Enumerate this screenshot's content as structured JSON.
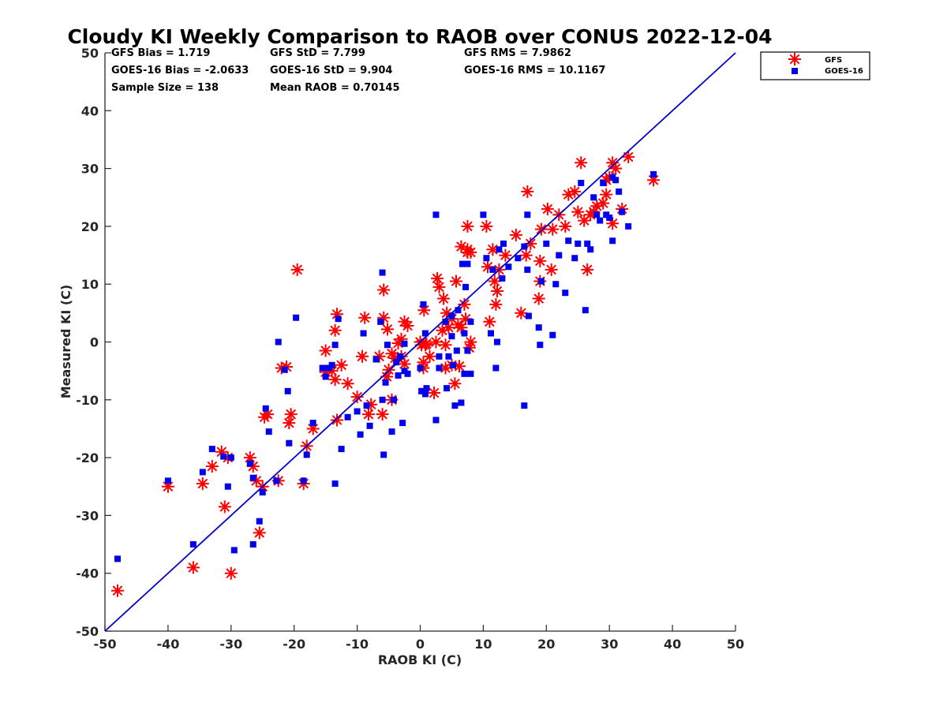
{
  "chart_data": {
    "type": "scatter",
    "title": "Cloudy KI Weekly Comparison to RAOB over CONUS 2022-12-04",
    "xlabel": "RAOB KI (C)",
    "ylabel": "Measured KI (C)",
    "xlim": [
      -50,
      50
    ],
    "ylim": [
      -50,
      50
    ],
    "xticks": [
      -50,
      -40,
      -30,
      -20,
      -10,
      0,
      10,
      20,
      30,
      40,
      50
    ],
    "yticks": [
      -50,
      -40,
      -30,
      -20,
      -10,
      0,
      10,
      20,
      30,
      40,
      50
    ],
    "grid": false,
    "legend_position": "outside-top-right",
    "reference_line": {
      "label": "1:1",
      "from": [
        -50,
        -50
      ],
      "to": [
        50,
        50
      ],
      "color": "#0000cc"
    },
    "stats": [
      [
        "GFS Bias = 1.719",
        "GFS StD = 7.799",
        "GFS RMS = 7.9862"
      ],
      [
        "GOES-16 Bias = -2.0633",
        "GOES-16 StD = 9.904",
        "GOES-16 RMS = 10.1167"
      ],
      [
        "Sample Size = 138",
        "Mean RAOB = 0.70145",
        ""
      ]
    ],
    "series": [
      {
        "name": "GFS",
        "marker": "asterisk",
        "color": "#ff0000",
        "points": [
          [
            -48,
            -43
          ],
          [
            -40,
            -25
          ],
          [
            -36,
            -39
          ],
          [
            -34.5,
            -24.5
          ],
          [
            -33,
            -21.5
          ],
          [
            -31.5,
            -19
          ],
          [
            -31,
            -28.5
          ],
          [
            -30.5,
            -20
          ],
          [
            -30,
            -40
          ],
          [
            -27,
            -20
          ],
          [
            -26.5,
            -21.5
          ],
          [
            -26,
            -24
          ],
          [
            -25.5,
            -33
          ],
          [
            -25,
            -25
          ],
          [
            -24.7,
            -13
          ],
          [
            -24.2,
            -12.5
          ],
          [
            -22.5,
            -24
          ],
          [
            -22,
            -4.5
          ],
          [
            -21.2,
            -4.3
          ],
          [
            -20.8,
            -14
          ],
          [
            -20.5,
            -12.5
          ],
          [
            -19.5,
            12.5
          ],
          [
            -18.5,
            -24.5
          ],
          [
            -18,
            -18
          ],
          [
            -17,
            -15
          ],
          [
            -15,
            -1.5
          ],
          [
            -15,
            -5.2
          ],
          [
            -14,
            -5
          ],
          [
            -13.5,
            -6.5
          ],
          [
            -13.5,
            2
          ],
          [
            -13.2,
            -13.5
          ],
          [
            -13.2,
            4.8
          ],
          [
            -12.5,
            -4
          ],
          [
            -11.5,
            -7.2
          ],
          [
            -10,
            -9.5
          ],
          [
            -9.2,
            -2.5
          ],
          [
            -8.8,
            4.2
          ],
          [
            -8.2,
            -12.5
          ],
          [
            -7.8,
            -10.8
          ],
          [
            -6.5,
            -2.5
          ],
          [
            -6,
            -12.5
          ],
          [
            -5.8,
            4.2
          ],
          [
            -5.8,
            9
          ],
          [
            -5.3,
            -6
          ],
          [
            -5.2,
            2.2
          ],
          [
            -5,
            -4.8
          ],
          [
            -4.5,
            -2
          ],
          [
            -4.5,
            -10
          ],
          [
            -4,
            -2.8
          ],
          [
            -3.5,
            -0.2
          ],
          [
            -3,
            0.5
          ],
          [
            -3,
            -2.5
          ],
          [
            -2.5,
            -3.8
          ],
          [
            -2.5,
            3.5
          ],
          [
            -2,
            2.8
          ],
          [
            0,
            0
          ],
          [
            0.2,
            -0.5
          ],
          [
            0.5,
            -4.5
          ],
          [
            0.8,
            -0.5
          ],
          [
            0.5,
            -3.5
          ],
          [
            0.6,
            5.5
          ],
          [
            1,
            -0.3
          ],
          [
            1.5,
            -2.5
          ],
          [
            2.2,
            -8.8
          ],
          [
            2.5,
            0
          ],
          [
            2.7,
            11
          ],
          [
            3,
            9.5
          ],
          [
            3.5,
            2
          ],
          [
            3.7,
            7.5
          ],
          [
            4,
            -4.5
          ],
          [
            4,
            -0.5
          ],
          [
            4.2,
            5
          ],
          [
            4.5,
            2.5
          ],
          [
            5,
            4
          ],
          [
            5,
            -4
          ],
          [
            5.5,
            -7.2
          ],
          [
            5.7,
            10.5
          ],
          [
            6,
            3
          ],
          [
            6.2,
            -4.2
          ],
          [
            6.5,
            2.5
          ],
          [
            6.5,
            16.5
          ],
          [
            7,
            6.5
          ],
          [
            7.2,
            4
          ],
          [
            7.5,
            16
          ],
          [
            7.5,
            15.5
          ],
          [
            7.5,
            20
          ],
          [
            7.8,
            -1
          ],
          [
            8,
            0
          ],
          [
            8,
            15.5
          ],
          [
            10.5,
            20
          ],
          [
            10.7,
            13
          ],
          [
            11,
            3.5
          ],
          [
            11.5,
            16
          ],
          [
            11.8,
            10.5
          ],
          [
            12,
            6.5
          ],
          [
            12.2,
            8.8
          ],
          [
            12.5,
            12.5
          ],
          [
            13.5,
            15
          ],
          [
            15.2,
            18.5
          ],
          [
            16,
            5
          ],
          [
            16.8,
            15
          ],
          [
            17,
            26
          ],
          [
            17.5,
            17
          ],
          [
            18.8,
            7.5
          ],
          [
            19,
            14
          ],
          [
            19,
            10.5
          ],
          [
            19.2,
            19.5
          ],
          [
            20.2,
            23
          ],
          [
            20.8,
            12.5
          ],
          [
            21,
            19.5
          ],
          [
            22,
            22
          ],
          [
            23,
            20
          ],
          [
            23.5,
            25.5
          ],
          [
            24.5,
            26
          ],
          [
            25,
            22.5
          ],
          [
            25.5,
            31
          ],
          [
            26,
            21
          ],
          [
            26.5,
            12.5
          ],
          [
            27,
            22
          ],
          [
            27.5,
            22.5
          ],
          [
            28,
            23.5
          ],
          [
            29,
            24
          ],
          [
            29.5,
            28
          ],
          [
            29.5,
            25.5
          ],
          [
            30,
            28.5
          ],
          [
            30.5,
            20.5
          ],
          [
            30.5,
            31
          ],
          [
            31,
            30
          ],
          [
            32,
            23
          ],
          [
            33,
            32
          ],
          [
            37,
            28
          ]
        ]
      },
      {
        "name": "GOES-16",
        "marker": "square",
        "color": "#0000ee",
        "points": [
          [
            -48,
            -37.5
          ],
          [
            -40,
            -24
          ],
          [
            -36,
            -35
          ],
          [
            -34.5,
            -22.5
          ],
          [
            -33,
            -18.5
          ],
          [
            -31.2,
            -19.8
          ],
          [
            -30.5,
            -25
          ],
          [
            -30,
            -20
          ],
          [
            -29.5,
            -36
          ],
          [
            -27,
            -21
          ],
          [
            -26.5,
            -23.5
          ],
          [
            -26.5,
            -35
          ],
          [
            -25.5,
            -31
          ],
          [
            -25,
            -26
          ],
          [
            -24.5,
            -11.5
          ],
          [
            -24,
            -15.5
          ],
          [
            -22.8,
            -24
          ],
          [
            -22.5,
            0
          ],
          [
            -21.5,
            -4.8
          ],
          [
            -21,
            -8.5
          ],
          [
            -20.8,
            -17.5
          ],
          [
            -19.7,
            4.2
          ],
          [
            -18.5,
            -24
          ],
          [
            -18,
            -19.5
          ],
          [
            -17,
            -14
          ],
          [
            -15.5,
            -4.5
          ],
          [
            -15,
            -6
          ],
          [
            -14.5,
            -4.5
          ],
          [
            -14,
            -4
          ],
          [
            -13.5,
            -24.5
          ],
          [
            -13.5,
            -0.5
          ],
          [
            -13,
            4
          ],
          [
            -12.5,
            -18.5
          ],
          [
            -11.5,
            -13
          ],
          [
            -10,
            -12
          ],
          [
            -9.5,
            -16
          ],
          [
            -9,
            1.5
          ],
          [
            -8.5,
            -11
          ],
          [
            -8,
            -14.5
          ],
          [
            -7,
            -3
          ],
          [
            -6.3,
            3.5
          ],
          [
            -6,
            12
          ],
          [
            -6,
            -10
          ],
          [
            -5.8,
            -19.5
          ],
          [
            -5.5,
            -7
          ],
          [
            -5.2,
            -0.5
          ],
          [
            -4.5,
            -15.5
          ],
          [
            -4.2,
            -10
          ],
          [
            -3.8,
            -3.5
          ],
          [
            -3.5,
            -5.8
          ],
          [
            -3.2,
            -2.5
          ],
          [
            -2.8,
            -14
          ],
          [
            -2.5,
            -0.3
          ],
          [
            -2.5,
            -5
          ],
          [
            -2,
            -5.5
          ],
          [
            0,
            -4.5
          ],
          [
            0.2,
            -8.5
          ],
          [
            0.5,
            6.5
          ],
          [
            0.8,
            1.5
          ],
          [
            0.8,
            -9
          ],
          [
            1,
            -8
          ],
          [
            2.5,
            -13.5
          ],
          [
            2.5,
            22
          ],
          [
            3,
            -2.5
          ],
          [
            3,
            -4.5
          ],
          [
            4,
            3.5
          ],
          [
            4.2,
            -8
          ],
          [
            4.5,
            -2.5
          ],
          [
            5,
            1
          ],
          [
            5,
            4.5
          ],
          [
            5.2,
            -4
          ],
          [
            5.5,
            -11
          ],
          [
            5.8,
            -1.5
          ],
          [
            6,
            5.5
          ],
          [
            6.5,
            -10.5
          ],
          [
            6.7,
            13.5
          ],
          [
            7,
            1.5
          ],
          [
            7,
            -5.5
          ],
          [
            7.2,
            9.5
          ],
          [
            7.5,
            -1.5
          ],
          [
            7.5,
            13.5
          ],
          [
            8,
            -5.5
          ],
          [
            8,
            3.5
          ],
          [
            10,
            22
          ],
          [
            10.5,
            14.5
          ],
          [
            11.2,
            1.5
          ],
          [
            11.5,
            12.5
          ],
          [
            12,
            -4.5
          ],
          [
            12.2,
            0
          ],
          [
            12.5,
            16
          ],
          [
            13,
            11
          ],
          [
            13.2,
            17
          ],
          [
            14,
            13
          ],
          [
            15.5,
            14.5
          ],
          [
            16.5,
            16.5
          ],
          [
            16.5,
            -11
          ],
          [
            17,
            22
          ],
          [
            17,
            12.5
          ],
          [
            17.2,
            4.5
          ],
          [
            18.8,
            2.5
          ],
          [
            19,
            -0.5
          ],
          [
            19.2,
            10.5
          ],
          [
            20,
            17
          ],
          [
            21,
            1.2
          ],
          [
            21.5,
            10
          ],
          [
            22,
            15
          ],
          [
            23,
            8.5
          ],
          [
            23.5,
            17.5
          ],
          [
            24.5,
            14.5
          ],
          [
            25,
            17
          ],
          [
            25.5,
            27.5
          ],
          [
            26.2,
            5.5
          ],
          [
            26.5,
            17
          ],
          [
            27,
            16
          ],
          [
            27.5,
            25
          ],
          [
            28,
            22
          ],
          [
            28.5,
            21
          ],
          [
            29,
            27.5
          ],
          [
            29.5,
            22
          ],
          [
            30,
            21.5
          ],
          [
            30.5,
            17.5
          ],
          [
            30.5,
            28.5
          ],
          [
            31,
            28
          ],
          [
            31.5,
            26
          ],
          [
            32,
            22.5
          ],
          [
            33,
            20
          ],
          [
            37,
            29
          ]
        ]
      }
    ]
  }
}
